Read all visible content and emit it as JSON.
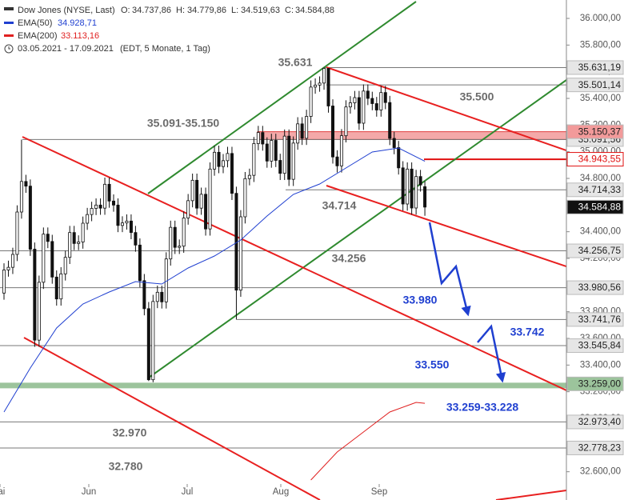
{
  "chart_data": {
    "type": "candlestick",
    "title": "Dow Jones (NYSE, Last)",
    "quote": [
      {
        "key": "O:",
        "text": "34.737,86"
      },
      {
        "key": "H:",
        "text": "34.779,86"
      },
      {
        "key": "L:",
        "text": "34.519,63"
      },
      {
        "key": "C:",
        "text": "34.584,88"
      }
    ],
    "period": "03.05.2021 - 17.09.2021",
    "period_note": "(EDT, 5 Monate, 1 Tag)",
    "months": [
      "Mai",
      "Jun",
      "Jul",
      "Aug",
      "Sep"
    ],
    "open": [
      33940,
      34113,
      34133,
      34230,
      34548,
      34777,
      34742,
      34269,
      33587,
      34021,
      34382,
      34327,
      34060,
      33896,
      34084,
      34208,
      34394,
      34312,
      34323,
      34464,
      34529,
      34575,
      34600,
      34577,
      34756,
      34630,
      34600,
      34447,
      34466,
      34480,
      34394,
      34300,
      34033,
      33823,
      33290,
      33877,
      33946,
      33874,
      34196,
      34433,
      34283,
      34292,
      34503,
      34633,
      34786,
      34577,
      34681,
      34421,
      34870,
      34996,
      34889,
      34933,
      34987,
      34688,
      33962,
      34512,
      34798,
      34823,
      35061,
      35144,
      35058,
      34930,
      35085,
      34935,
      34838,
      35117,
      34793,
      35065,
      35209,
      35101,
      35265,
      35485,
      35500,
      35515,
      35625,
      35343,
      34961,
      34894,
      35120,
      35336,
      35367,
      35406,
      35214,
      35455,
      35400,
      35361,
      35313,
      35444,
      35369,
      35100,
      35031,
      34879,
      34608,
      34870,
      34578,
      34814,
      34737.86
    ],
    "high": [
      34163,
      34183,
      34280,
      34598,
      35091,
      34827,
      34792,
      34319,
      34071,
      34432,
      34432,
      34377,
      34110,
      34134,
      34258,
      34444,
      34444,
      34373,
      34514,
      34579,
      34625,
      34650,
      34650,
      34806,
      34806,
      34680,
      34650,
      34516,
      34530,
      34530,
      34444,
      34350,
      34083,
      33873,
      33927,
      33996,
      33996,
      34246,
      34483,
      34483,
      34342,
      34553,
      34683,
      34836,
      34836,
      34731,
      34731,
      34920,
      35046,
      35046,
      34983,
      35037,
      35037,
      34738,
      34562,
      34848,
      34873,
      35111,
      35194,
      35194,
      35108,
      35135,
      35135,
      34985,
      35167,
      35167,
      35115,
      35259,
      35259,
      35315,
      35535,
      35550,
      35565,
      35631,
      35625,
      35393,
      35011,
      35170,
      35386,
      35417,
      35456,
      35456,
      35505,
      35505,
      35450,
      35411,
      35494,
      35494,
      35419,
      35150,
      35081,
      34929,
      34920,
      34920,
      34864,
      34864,
      34779.86
    ],
    "low": [
      33890,
      34063,
      34083,
      34180,
      34498,
      34692,
      34219,
      33537,
      33537,
      33971,
      34277,
      34010,
      33846,
      33846,
      34034,
      34158,
      34262,
      34262,
      34273,
      34414,
      34479,
      34525,
      34527,
      34527,
      34580,
      34550,
      34397,
      34397,
      34416,
      34344,
      34250,
      33983,
      33773,
      33280,
      33271,
      33827,
      33824,
      33824,
      34146,
      34233,
      34233,
      34242,
      34453,
      34583,
      34527,
      34527,
      34371,
      34371,
      34820,
      34839,
      34839,
      34883,
      34638,
      33741,
      33912,
      34462,
      34748,
      34773,
      35011,
      35008,
      34880,
      34880,
      34885,
      34788,
      34788,
      34743,
      34743,
      35015,
      35051,
      35051,
      35215,
      35435,
      35450,
      35465,
      35293,
      34911,
      34844,
      34844,
      35070,
      35286,
      35317,
      35164,
      35164,
      35350,
      35311,
      35263,
      35263,
      35319,
      35050,
      34981,
      34829,
      34558,
      34558,
      34528,
      34528,
      34701,
      34519.63
    ],
    "close": [
      34113,
      34133,
      34230,
      34548,
      34777,
      34742,
      34269,
      33587,
      34021,
      34382,
      34327,
      34060,
      33896,
      34084,
      34208,
      34394,
      34312,
      34323,
      34464,
      34529,
      34575,
      34600,
      34577,
      34756,
      34630,
      34600,
      34447,
      34466,
      34480,
      34394,
      34300,
      34033,
      33823,
      33290,
      33877,
      33946,
      33874,
      34196,
      34433,
      34283,
      34292,
      34503,
      34633,
      34786,
      34577,
      34681,
      34421,
      34870,
      34996,
      34889,
      34933,
      34987,
      34688,
      33962,
      34512,
      34798,
      34823,
      35061,
      35144,
      35058,
      34930,
      35085,
      34935,
      34838,
      35117,
      34793,
      35065,
      35209,
      35101,
      35265,
      35485,
      35500,
      35515,
      35625,
      35343,
      34961,
      34894,
      35120,
      35336,
      35367,
      35406,
      35214,
      35455,
      35400,
      35361,
      35313,
      35444,
      35369,
      35100,
      35031,
      34879,
      34608,
      34870,
      34578,
      34814,
      34751,
      34584.88
    ],
    "series": [
      {
        "name": "EMA(50)",
        "value_label": "34.928,71",
        "color": "#1f3fd0",
        "x": [
          0,
          6,
          12,
          18,
          24,
          30,
          36,
          42,
          48,
          54,
          60,
          66,
          72,
          78,
          84,
          90,
          96
        ],
        "values": [
          33048,
          33378,
          33678,
          33858,
          33948,
          34026,
          34008,
          34128,
          34218,
          34338,
          34518,
          34680,
          34758,
          34878,
          34998,
          35028,
          34928.71
        ]
      },
      {
        "name": "EMA(200)",
        "value_label": "33.113,16",
        "color": "#e02020",
        "x": [
          70,
          76,
          82,
          88,
          94,
          96
        ],
        "values": [
          32538,
          32748,
          32898,
          33048,
          33120,
          33113.16
        ]
      }
    ],
    "ylim": [
      32508,
      36138
    ],
    "yticks": [
      {
        "value": 32600,
        "label": "32.600,00"
      },
      {
        "value": 32800,
        "label": "32.800,00"
      },
      {
        "value": 33000,
        "label": "33.000,00"
      },
      {
        "value": 33200,
        "label": "33.200,00"
      },
      {
        "value": 33400,
        "label": "33.400,00"
      },
      {
        "value": 33600,
        "label": "33.600,00"
      },
      {
        "value": 33800,
        "label": "33.800,00"
      },
      {
        "value": 34000,
        "label": "34.000,00"
      },
      {
        "value": 34200,
        "label": "34.200,00"
      },
      {
        "value": 34400,
        "label": "34.400,00"
      },
      {
        "value": 34600,
        "label": "34.600,00"
      },
      {
        "value": 34800,
        "label": "34.800,00"
      },
      {
        "value": 35000,
        "label": "35.000,00"
      },
      {
        "value": 35200,
        "label": "35.200,00"
      },
      {
        "value": 35400,
        "label": "35.400,00"
      },
      {
        "value": 35600,
        "label": "35.600,00"
      },
      {
        "value": 35800,
        "label": "35.800,00"
      },
      {
        "value": 36000,
        "label": "36.000,00"
      }
    ],
    "levels": [
      {
        "value": 35631.19,
        "label": "35.631,19",
        "fill": "#e6e6e6",
        "text_color": "#222222"
      },
      {
        "value": 35501.14,
        "label": "35.501,14",
        "fill": "#e6e6e6",
        "text_color": "#222222"
      },
      {
        "value": 35091.56,
        "label": "35.091,56",
        "fill": "#e6e6e6",
        "text_color": "#222222"
      },
      {
        "value": 35150.37,
        "label": "35.150,37",
        "fill": "#f29a9a",
        "text_color": "#222222"
      },
      {
        "value": 34943.55,
        "label": "34.943,55",
        "fill": "#ffffff",
        "text_color": "#e01010"
      },
      {
        "value": 34714.33,
        "label": "34.714,33",
        "fill": "#e6e6e6",
        "text_color": "#222222"
      },
      {
        "value": 34584.88,
        "label": "34.584,88",
        "fill": "#111111",
        "text_color": "#ffffff"
      },
      {
        "value": 34256.75,
        "label": "34.256,75",
        "fill": "#e6e6e6",
        "text_color": "#222222"
      },
      {
        "value": 33980.56,
        "label": "33.980,56",
        "fill": "#e6e6e6",
        "text_color": "#222222"
      },
      {
        "value": 33741.76,
        "label": "33.741,76",
        "fill": "#e6e6e6",
        "text_color": "#222222"
      },
      {
        "value": 33545.84,
        "label": "33.545,84",
        "fill": "#e6e6e6",
        "text_color": "#222222"
      },
      {
        "value": 33259.0,
        "label": "33.259,00",
        "fill": "#9cc49c",
        "text_color": "#222222"
      },
      {
        "value": 32973.4,
        "label": "32.973,40",
        "fill": "#e6e6e6",
        "text_color": "#222222"
      },
      {
        "value": 32778.23,
        "label": "32.778,23",
        "fill": "#e6e6e6",
        "text_color": "#222222"
      }
    ],
    "annotations": [
      {
        "text": "35.631",
        "color": "#6b6b6b"
      },
      {
        "text": "35.500",
        "color": "#6b6b6b"
      },
      {
        "text": "35.091-35.150",
        "color": "#6b6b6b"
      },
      {
        "text": "34.714",
        "color": "#6b6b6b"
      },
      {
        "text": "34.256",
        "color": "#6b6b6b"
      },
      {
        "text": "33.980",
        "color": "#1f3fd0"
      },
      {
        "text": "33.742",
        "color": "#1f3fd0"
      },
      {
        "text": "33.550",
        "color": "#1f3fd0"
      },
      {
        "text": "33.259-33.228",
        "color": "#1f3fd0"
      },
      {
        "text": "32.970",
        "color": "#6b6b6b"
      },
      {
        "text": "32.780",
        "color": "#6b6b6b"
      }
    ]
  }
}
